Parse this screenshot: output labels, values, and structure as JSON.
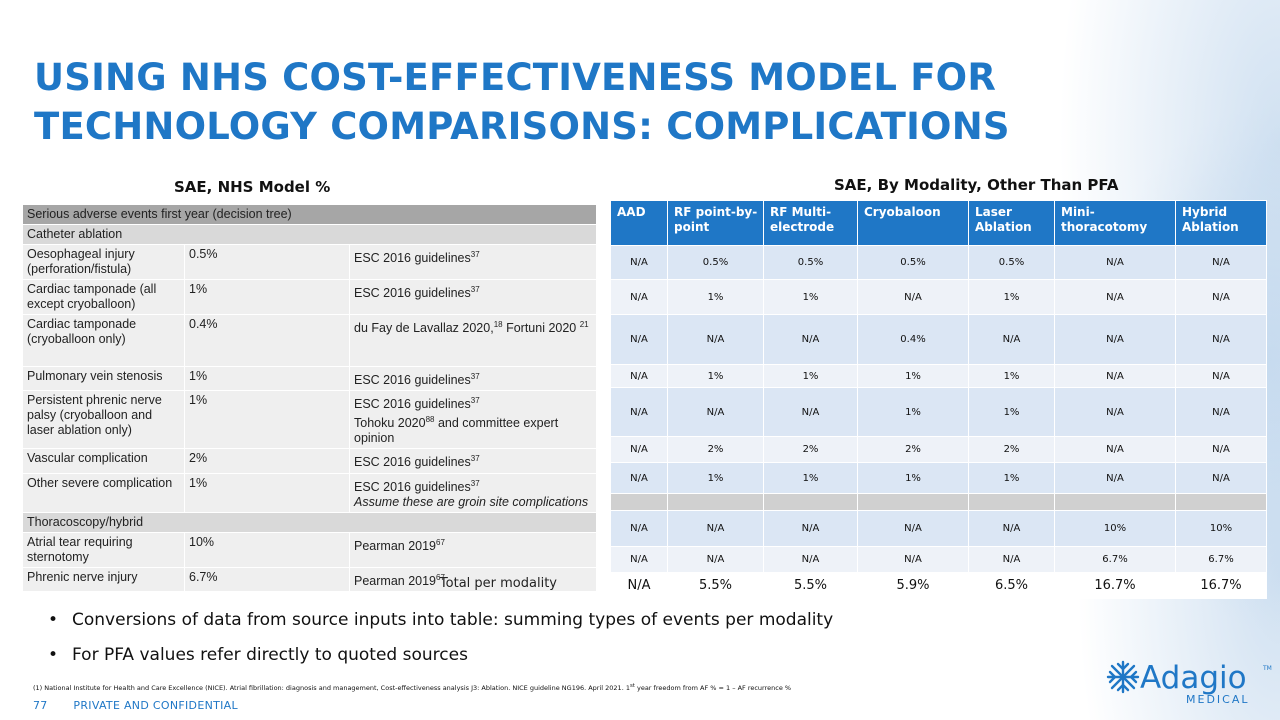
{
  "title_line1": "USING NHS COST-EFFECTIVENESS MODEL FOR",
  "title_line2": "TECHNOLOGY COMPARISONS: COMPLICATIONS",
  "left_caption": "SAE, NHS Model %",
  "right_caption": "SAE, By Modality, Other Than PFA",
  "left_table": {
    "header": "Serious adverse events first year (decision tree)",
    "section1": "Catheter ablation",
    "section2": "Thoracoscopy/hybrid",
    "rows": [
      {
        "event": "Oesophageal injury (perforation/fistula)",
        "value": "0.5%",
        "source": "ESC 2016 guidelines",
        "ref": "37"
      },
      {
        "event": "Cardiac tamponade (all except cryoballoon)",
        "value": "1%",
        "source": "ESC 2016 guidelines",
        "ref": "37"
      },
      {
        "event": "Cardiac tamponade (cryoballoon only)",
        "value": "0.4%",
        "source": "du Fay de Lavallaz 2020,",
        "ref": "18",
        "source_b": " Fortuni 2020 ",
        "ref_b": "21"
      },
      {
        "event": "Pulmonary vein stenosis",
        "value": "1%",
        "source": "ESC 2016 guidelines",
        "ref": "37"
      },
      {
        "event": "Persistent phrenic nerve palsy (cryoballoon and laser ablation only)",
        "value": "1%",
        "source": "ESC 2016 guidelines",
        "ref": "37",
        "source_b": "Tohoku 2020",
        "ref_b": "88",
        "source_c": " and committee expert opinion"
      },
      {
        "event": "Vascular complication",
        "value": "2%",
        "source": "ESC 2016 guidelines",
        "ref": "37"
      },
      {
        "event": "Other severe complication",
        "value": "1%",
        "source": "ESC 2016 guidelines",
        "ref": "37",
        "note": "Assume these are groin site complications"
      },
      {
        "event": "Atrial tear requiring sternotomy",
        "value": "10%",
        "source": "Pearman 2019",
        "ref": "67"
      },
      {
        "event": "Phrenic nerve injury",
        "value": "6.7%",
        "source": "Pearman 2019",
        "ref": "67"
      }
    ]
  },
  "right_table": {
    "columns": [
      "AAD",
      "RF point-by-point",
      "RF Multi-electrode",
      "Cryobaloon",
      "Laser Ablation",
      "Mini-thoracotomy",
      "Hybrid Ablation"
    ],
    "rows": [
      [
        "N/A",
        "0.5%",
        "0.5%",
        "0.5%",
        "0.5%",
        "N/A",
        "N/A"
      ],
      [
        "N/A",
        "1%",
        "1%",
        "N/A",
        "1%",
        "N/A",
        "N/A"
      ],
      [
        "N/A",
        "N/A",
        "N/A",
        "0.4%",
        "N/A",
        "N/A",
        "N/A"
      ],
      [
        "N/A",
        "1%",
        "1%",
        "1%",
        "1%",
        "N/A",
        "N/A"
      ],
      [
        "N/A",
        "N/A",
        "N/A",
        "1%",
        "1%",
        "N/A",
        "N/A"
      ],
      [
        "N/A",
        "2%",
        "2%",
        "2%",
        "2%",
        "N/A",
        "N/A"
      ],
      [
        "N/A",
        "1%",
        "1%",
        "1%",
        "1%",
        "N/A",
        "N/A"
      ],
      [
        "N/A",
        "N/A",
        "N/A",
        "N/A",
        "N/A",
        "10%",
        "10%"
      ],
      [
        "N/A",
        "N/A",
        "N/A",
        "N/A",
        "N/A",
        "6.7%",
        "6.7%"
      ]
    ],
    "total_label": "Total per modality",
    "totals": [
      "N/A",
      "5.5%",
      "5.5%",
      "5.9%",
      "6.5%",
      "16.7%",
      "16.7%"
    ]
  },
  "bullets": [
    "Conversions of data from source inputs into table: summing types of events per modality",
    "For PFA values refer directly to quoted sources"
  ],
  "footnote_a": "(1) National Institute for Health and Care Excellence (NICE). Atrial fibrillation: diagnosis and management, Cost-effectiveness analysis J3: Ablation. NICE guideline NG196. April 2021. 1",
  "footnote_sup": "st",
  "footnote_b": " year freedom from AF % = 1 – AF recurrence %",
  "footer": {
    "page": "77",
    "label": "PRIVATE AND CONFIDENTIAL"
  },
  "logo": {
    "name": "Adagio",
    "tm": "TM",
    "sub": "MEDICAL"
  },
  "colors": {
    "brand_blue": "#1f77c6",
    "header_gray": "#a6a6a6"
  }
}
